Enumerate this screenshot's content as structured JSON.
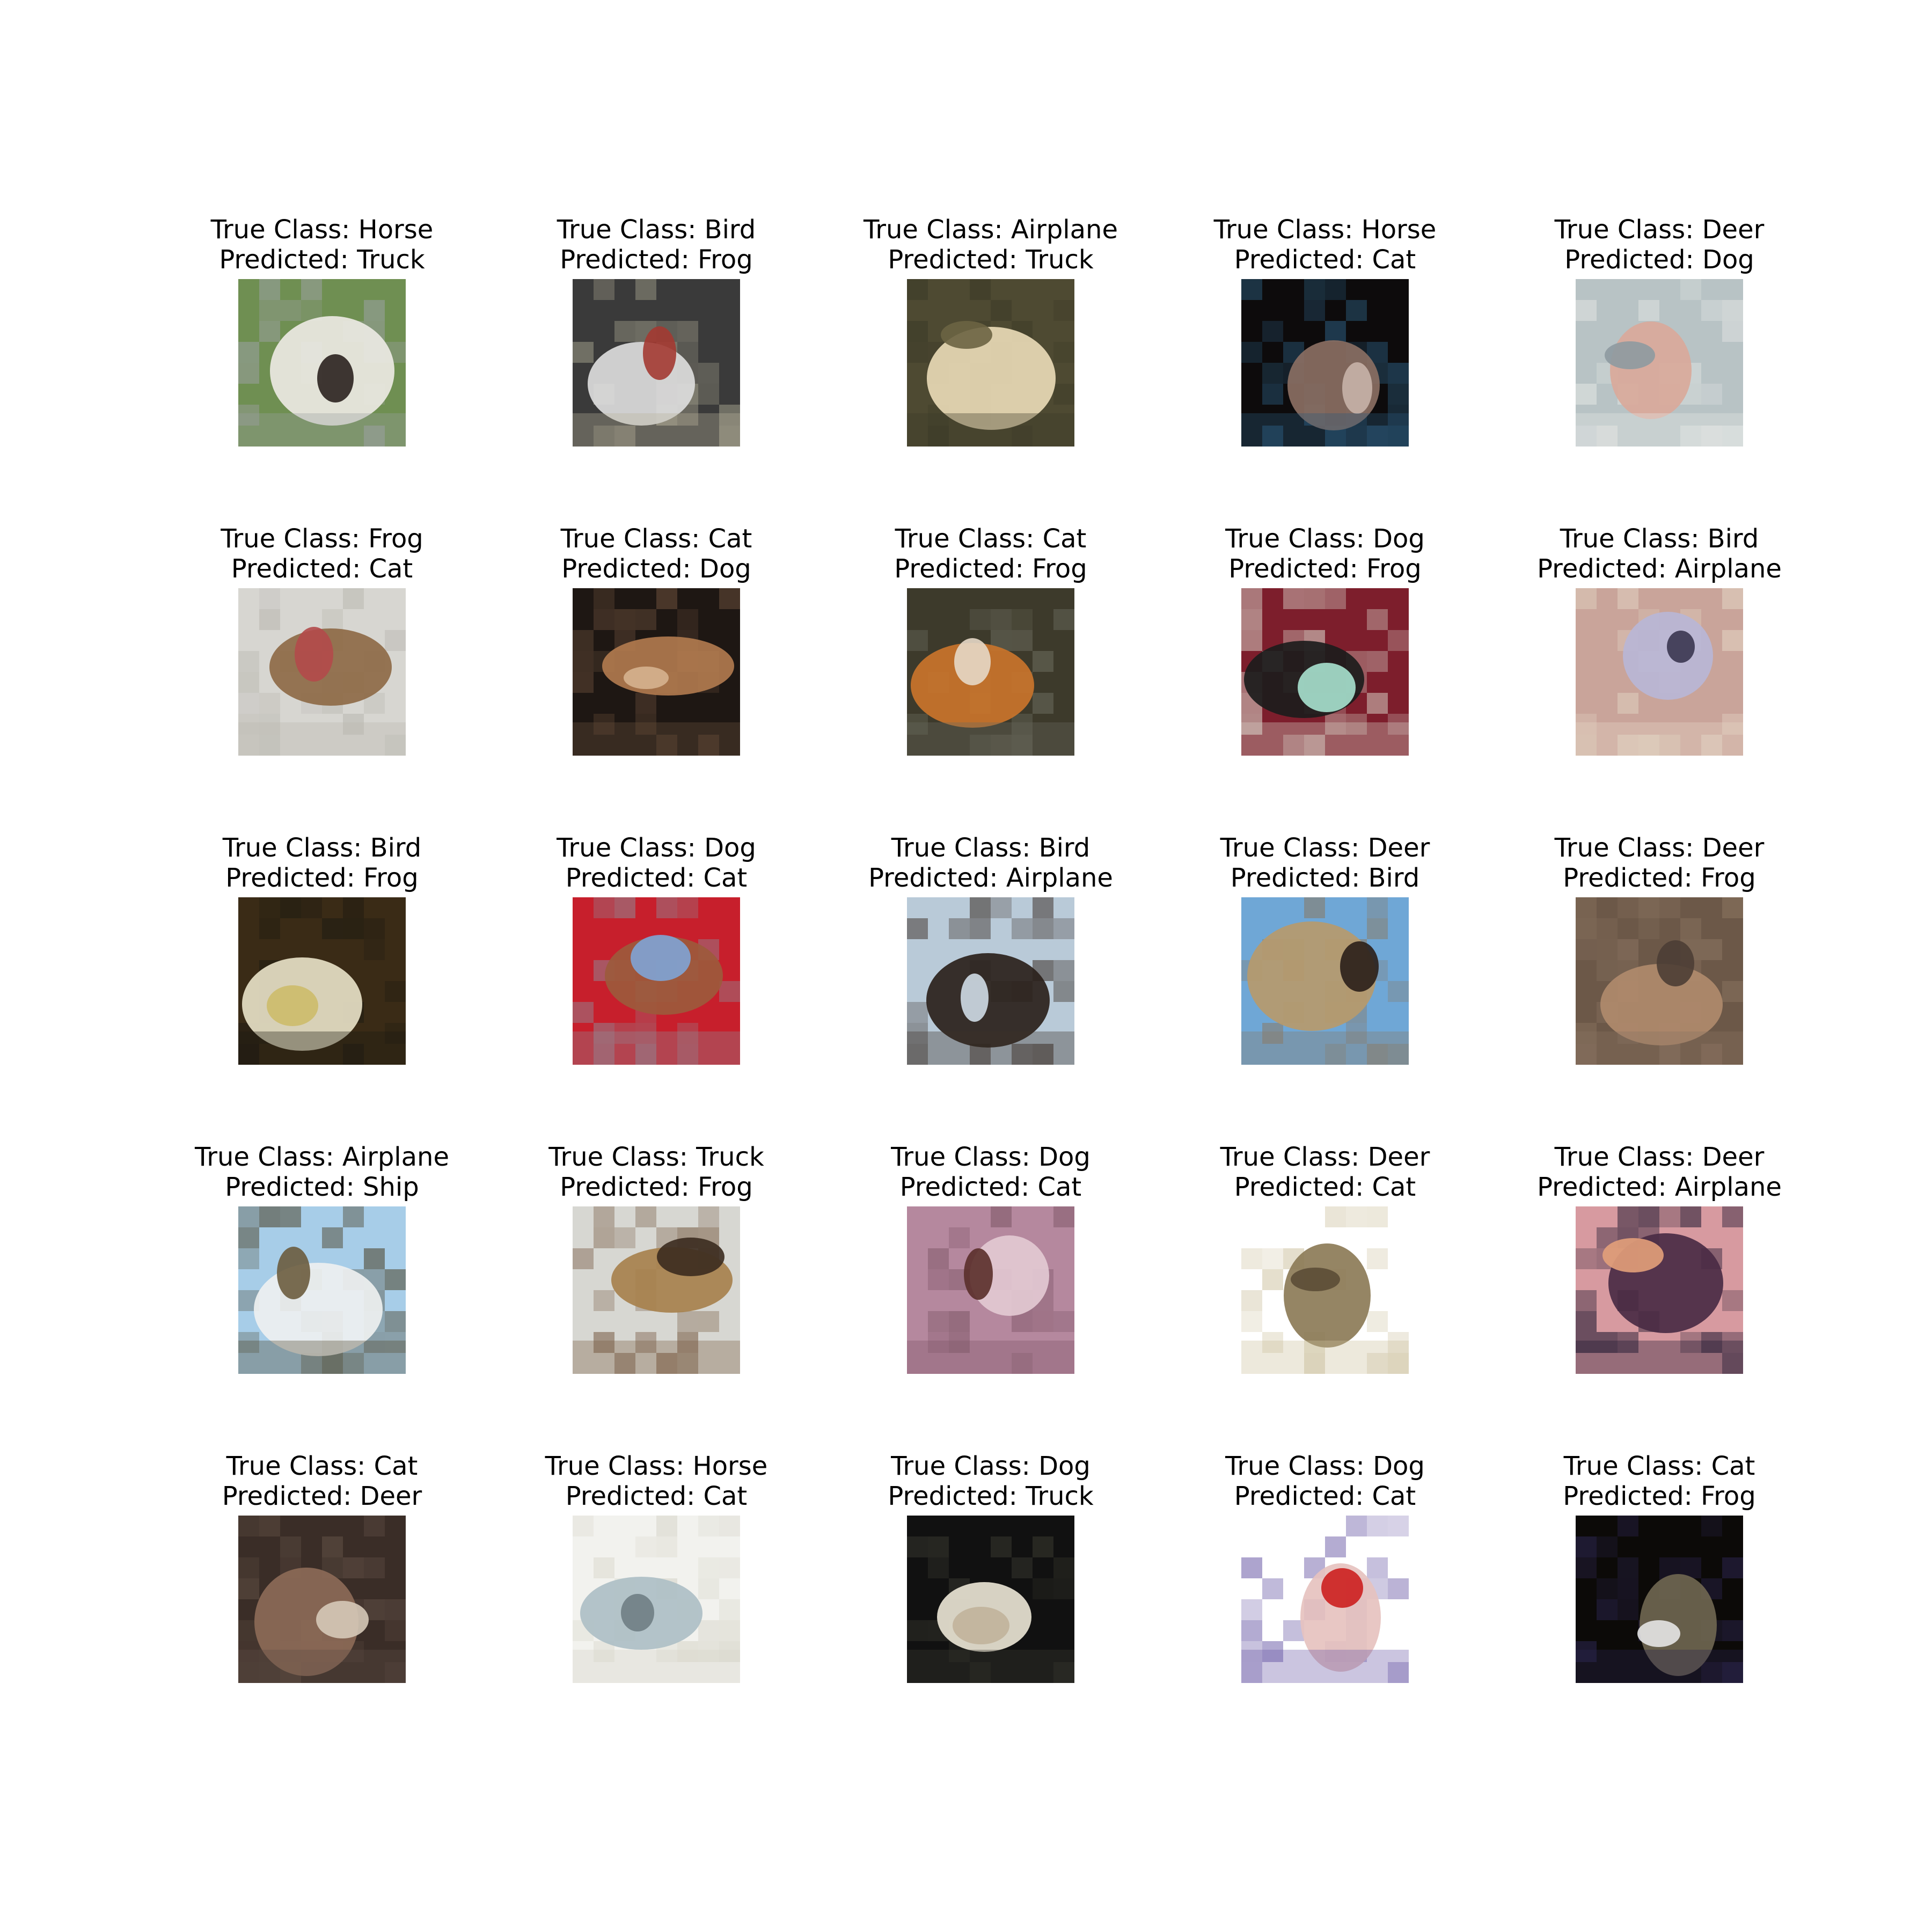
{
  "panels": [
    {
      "true_label": "True Class: Horse",
      "pred_label": "Predicted: Truck",
      "colors": [
        "#6f8f52",
        "#ece9e3",
        "#2b221f",
        "#9aa0a0"
      ]
    },
    {
      "true_label": "True Class: Bird",
      "pred_label": "Predicted: Frog",
      "colors": [
        "#3a3a3a",
        "#dcdcdc",
        "#a33a32",
        "#b7b39b"
      ]
    },
    {
      "true_label": "True Class: Airplane",
      "pred_label": "Predicted: Truck",
      "colors": [
        "#4e4a32",
        "#e8d9b5",
        "#6b6442",
        "#3c3a27"
      ]
    },
    {
      "true_label": "True Class: Horse",
      "pred_label": "Predicted: Cat",
      "colors": [
        "#0d0b0c",
        "#8a6f63",
        "#c7b2a8",
        "#2b5a7a"
      ]
    },
    {
      "true_label": "True Class: Deer",
      "pred_label": "Predicted: Dog",
      "colors": [
        "#b8c3c5",
        "#d9a99a",
        "#8e9aa0",
        "#e6e8e6"
      ]
    },
    {
      "true_label": "True Class: Frog",
      "pred_label": "Predicted: Cat",
      "colors": [
        "#d7d6d1",
        "#8e6a46",
        "#b24a4a",
        "#b9b7b0"
      ]
    },
    {
      "true_label": "True Class: Cat",
      "pred_label": "Predicted: Dog",
      "colors": [
        "#1e1713",
        "#b07a4e",
        "#d6b38f",
        "#6b4f3b"
      ]
    },
    {
      "true_label": "True Class: Cat",
      "pred_label": "Predicted: Frog",
      "colors": [
        "#3d3a2b",
        "#c9742b",
        "#e6d8c6",
        "#6b6b5e"
      ]
    },
    {
      "true_label": "True Class: Dog",
      "pred_label": "Predicted: Frog",
      "colors": [
        "#7d1e2c",
        "#1c1c1c",
        "#a8e2cf",
        "#d8d2c7"
      ]
    },
    {
      "true_label": "True Class: Bird",
      "pred_label": "Predicted: Airplane",
      "colors": [
        "#c9a49a",
        "#b8b6d6",
        "#3b3650",
        "#e4d7c6"
      ]
    },
    {
      "true_label": "True Class: Bird",
      "pred_label": "Predicted: Frog",
      "colors": [
        "#3a2b16",
        "#e6e0c6",
        "#cdbb6a",
        "#1d1a12"
      ]
    },
    {
      "true_label": "True Class: Dog",
      "pred_label": "Predicted: Cat",
      "colors": [
        "#c71f2c",
        "#9c5a3c",
        "#7fa4d6",
        "#8e8a96"
      ]
    },
    {
      "true_label": "True Class: Bird",
      "pred_label": "Predicted: Airplane",
      "colors": [
        "#b9cad8",
        "#2a211b",
        "#cfdbe5",
        "#3d3028"
      ]
    },
    {
      "true_label": "True Class: Deer",
      "pred_label": "Predicted: Bird",
      "colors": [
        "#6fa7d6",
        "#b69a6c",
        "#2a1f1a",
        "#8a7a66"
      ]
    },
    {
      "true_label": "True Class: Deer",
      "pred_label": "Predicted: Frog",
      "colors": [
        "#6c5848",
        "#b08a6c",
        "#4c3e35",
        "#8a7360"
      ]
    },
    {
      "true_label": "True Class: Airplane",
      "pred_label": "Predicted: Ship",
      "colors": [
        "#a7cde8",
        "#eef0f0",
        "#6b5c3e",
        "#4f472f"
      ]
    },
    {
      "true_label": "True Class: Truck",
      "pred_label": "Predicted: Frog",
      "colors": [
        "#d7d7d2",
        "#a7814d",
        "#3b2b1f",
        "#7a5e46"
      ]
    },
    {
      "true_label": "True Class: Dog",
      "pred_label": "Predicted: Cat",
      "colors": [
        "#b5889e",
        "#e3c9d3",
        "#5a2f2a",
        "#7d5566"
      ]
    },
    {
      "true_label": "True Class: Deer",
      "pred_label": "Predicted: Cat",
      "colors": [
        "#ffffff",
        "#8c7b57",
        "#5b4d36",
        "#cbbf9b"
      ]
    },
    {
      "true_label": "True Class: Deer",
      "pred_label": "Predicted: Airplane",
      "colors": [
        "#d79aa0",
        "#4a2b44",
        "#e3a07a",
        "#1e1830"
      ]
    },
    {
      "true_label": "True Class: Cat",
      "pred_label": "Predicted: Deer",
      "colors": [
        "#3a2d27",
        "#8c6a57",
        "#d6c9b8",
        "#5f4e44"
      ]
    },
    {
      "true_label": "True Class: Horse",
      "pred_label": "Predicted: Cat",
      "colors": [
        "#f2f2ee",
        "#aebfc6",
        "#6f7e84",
        "#d6d4c8"
      ]
    },
    {
      "true_label": "True Class: Dog",
      "pred_label": "Predicted: Truck",
      "colors": [
        "#111111",
        "#e8e3d3",
        "#c1b39b",
        "#3a3a30"
      ]
    },
    {
      "true_label": "True Class: Dog",
      "pred_label": "Predicted: Cat",
      "colors": [
        "#ffffff",
        "#e6c2bf",
        "#cc1f1f",
        "#6a5aa6"
      ]
    },
    {
      "true_label": "True Class: Cat",
      "pred_label": "Predicted: Frog",
      "colors": [
        "#0c0a08",
        "#6f6650",
        "#e6e6e6",
        "#2b244d"
      ]
    }
  ]
}
